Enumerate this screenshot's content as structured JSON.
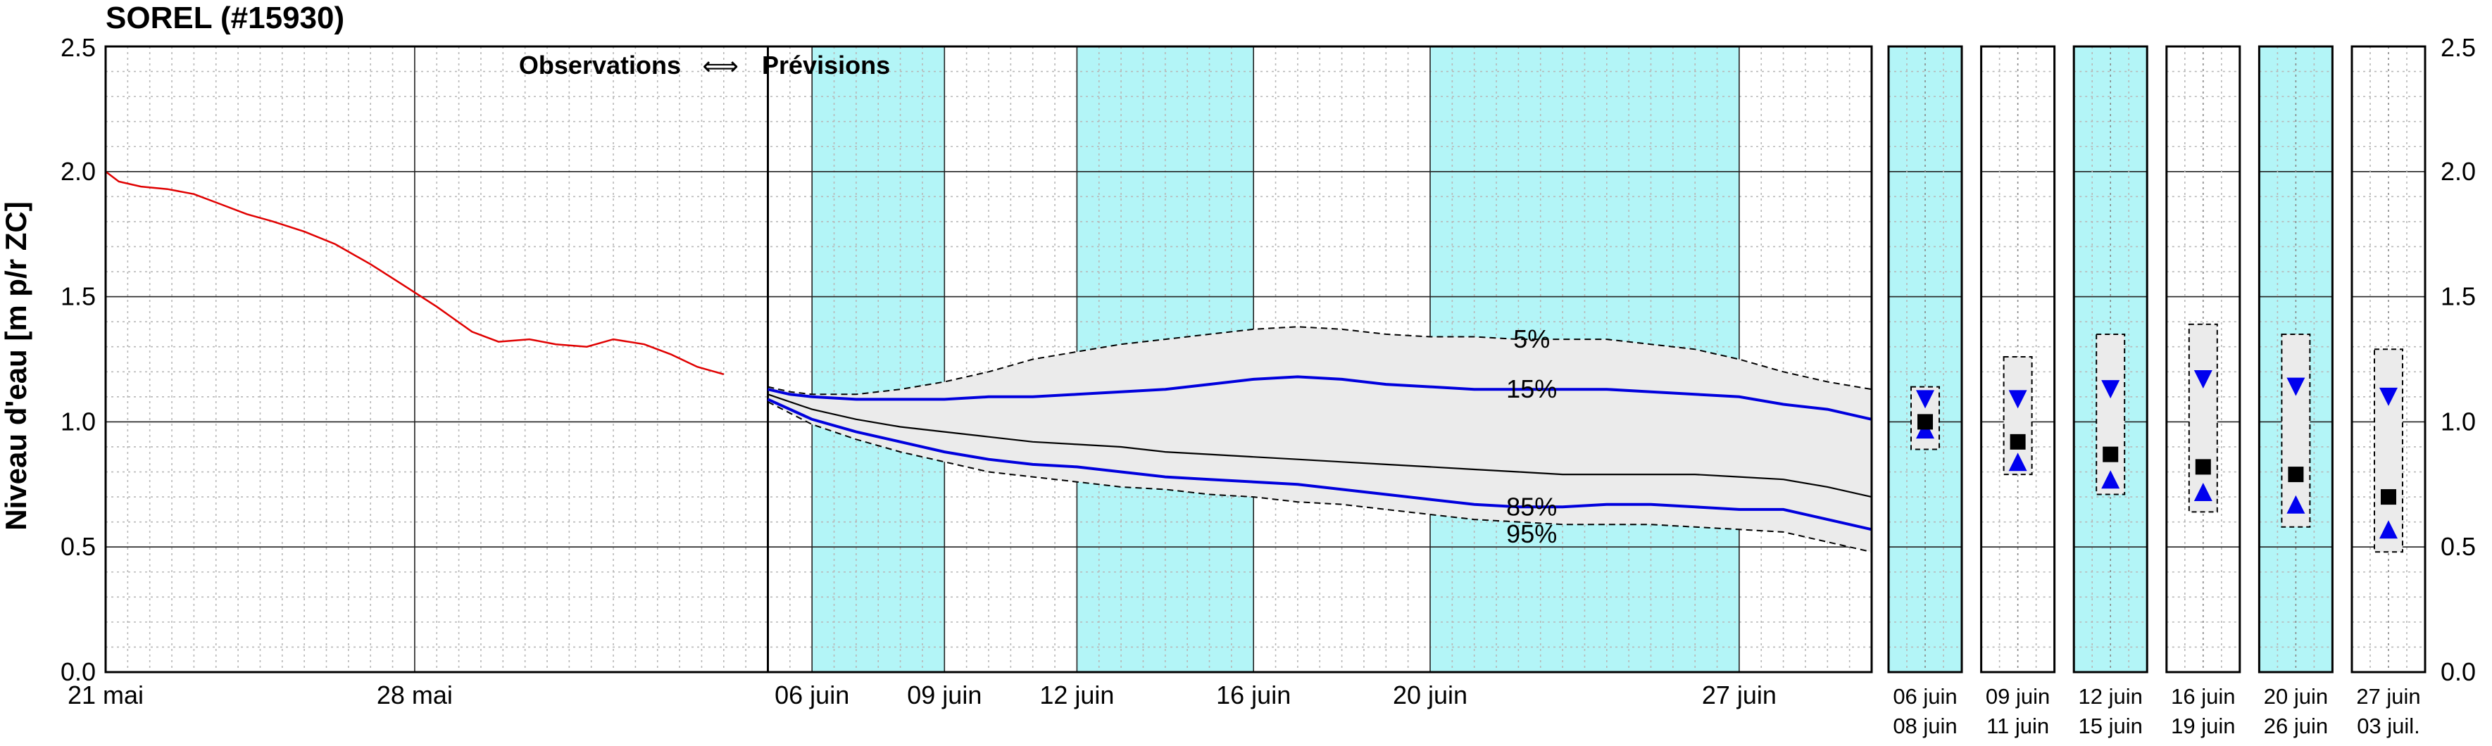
{
  "title": "SOREL (#15930)",
  "ylabel": "Niveau d'eau [m p/r ZC]",
  "y_ticks": [
    "0.0",
    "0.5",
    "1.0",
    "1.5",
    "2.0",
    "2.5"
  ],
  "y_tick_values": [
    0.0,
    0.5,
    1.0,
    1.5,
    2.0,
    2.5
  ],
  "annotation_left": "Observations",
  "annotation_arrow": "⟺",
  "annotation_right": "Prévisions",
  "colors": {
    "observation": "#e00000",
    "percentile_line": "#0000dd",
    "median": "#000000",
    "band_fill": "#ebebeb",
    "highlight": "#b3f5f7",
    "marker_square": "#000000",
    "marker_triangle": "#0000ee"
  },
  "chart_data": [
    {
      "type": "line",
      "title": "SOREL (#15930)",
      "ylabel": "Niveau d'eau [m p/r ZC]",
      "ylim": [
        0,
        2.5
      ],
      "xlim_days": [
        0,
        40
      ],
      "x_ticks": [
        {
          "day": 0,
          "label": "21 mai"
        },
        {
          "day": 7,
          "label": "28 mai"
        },
        {
          "day": 16,
          "label": "06 juin"
        },
        {
          "day": 19,
          "label": "09 juin"
        },
        {
          "day": 22,
          "label": "12 juin"
        },
        {
          "day": 26,
          "label": "16 juin"
        },
        {
          "day": 30,
          "label": "20 juin"
        },
        {
          "day": 37,
          "label": "27 juin"
        }
      ],
      "forecast_start_day": 15,
      "highlight_ranges_days": [
        [
          16,
          19
        ],
        [
          22,
          26
        ],
        [
          30,
          37
        ]
      ],
      "grid": true,
      "series": [
        {
          "key": "observations",
          "x": [
            0,
            0.3,
            0.8,
            1.4,
            2.0,
            2.6,
            3.2,
            3.8,
            4.5,
            5.2,
            6.0,
            6.8,
            7.5,
            8.3,
            8.9,
            9.6,
            10.2,
            10.9,
            11.5,
            12.2,
            12.8,
            13.4,
            14.0
          ],
          "y": [
            2.0,
            1.96,
            1.94,
            1.93,
            1.91,
            1.87,
            1.83,
            1.8,
            1.76,
            1.71,
            1.63,
            1.54,
            1.46,
            1.36,
            1.32,
            1.33,
            1.31,
            1.3,
            1.33,
            1.31,
            1.27,
            1.22,
            1.19
          ]
        },
        {
          "key": "p5",
          "label": "5%",
          "x": [
            15,
            15.5,
            16,
            17,
            18,
            19,
            20,
            21,
            22,
            23,
            24,
            25,
            26,
            27,
            28,
            29,
            30,
            31,
            32,
            33,
            34,
            35,
            36,
            37,
            38,
            39,
            40
          ],
          "y": [
            1.14,
            1.12,
            1.11,
            1.11,
            1.13,
            1.16,
            1.2,
            1.25,
            1.28,
            1.31,
            1.33,
            1.35,
            1.37,
            1.38,
            1.37,
            1.35,
            1.34,
            1.34,
            1.33,
            1.33,
            1.33,
            1.31,
            1.29,
            1.25,
            1.2,
            1.16,
            1.13
          ]
        },
        {
          "key": "p15",
          "label": "15%",
          "x": [
            15,
            15.5,
            16,
            17,
            18,
            19,
            20,
            21,
            22,
            23,
            24,
            25,
            26,
            27,
            28,
            29,
            30,
            31,
            32,
            33,
            34,
            35,
            36,
            37,
            38,
            39,
            40
          ],
          "y": [
            1.13,
            1.11,
            1.1,
            1.09,
            1.09,
            1.09,
            1.1,
            1.1,
            1.11,
            1.12,
            1.13,
            1.15,
            1.17,
            1.18,
            1.17,
            1.15,
            1.14,
            1.13,
            1.13,
            1.13,
            1.13,
            1.12,
            1.11,
            1.1,
            1.07,
            1.05,
            1.01
          ]
        },
        {
          "key": "median",
          "x": [
            15,
            16,
            17,
            18,
            19,
            20,
            21,
            22,
            23,
            24,
            25,
            26,
            27,
            28,
            29,
            30,
            31,
            32,
            33,
            34,
            35,
            36,
            37,
            38,
            39,
            40
          ],
          "y": [
            1.11,
            1.05,
            1.01,
            0.98,
            0.96,
            0.94,
            0.92,
            0.91,
            0.9,
            0.88,
            0.87,
            0.86,
            0.85,
            0.84,
            0.83,
            0.82,
            0.81,
            0.8,
            0.79,
            0.79,
            0.79,
            0.79,
            0.78,
            0.77,
            0.74,
            0.7
          ]
        },
        {
          "key": "p85",
          "label": "85%",
          "x": [
            15,
            16,
            17,
            18,
            19,
            20,
            21,
            22,
            23,
            24,
            25,
            26,
            27,
            28,
            29,
            30,
            31,
            32,
            33,
            34,
            35,
            36,
            37,
            38,
            39,
            40
          ],
          "y": [
            1.09,
            1.01,
            0.96,
            0.92,
            0.88,
            0.85,
            0.83,
            0.82,
            0.8,
            0.78,
            0.77,
            0.76,
            0.75,
            0.73,
            0.71,
            0.69,
            0.67,
            0.66,
            0.66,
            0.67,
            0.67,
            0.66,
            0.65,
            0.65,
            0.61,
            0.57
          ]
        },
        {
          "key": "p95",
          "label": "95%",
          "x": [
            15,
            16,
            17,
            18,
            19,
            20,
            21,
            22,
            23,
            24,
            25,
            26,
            27,
            28,
            29,
            30,
            31,
            32,
            33,
            34,
            35,
            36,
            37,
            38,
            39,
            40
          ],
          "y": [
            1.08,
            0.99,
            0.93,
            0.88,
            0.84,
            0.8,
            0.78,
            0.76,
            0.74,
            0.73,
            0.71,
            0.7,
            0.68,
            0.67,
            0.65,
            0.63,
            0.61,
            0.6,
            0.59,
            0.59,
            0.59,
            0.58,
            0.57,
            0.56,
            0.52,
            0.48
          ]
        }
      ],
      "labels": [
        {
          "series": "p5",
          "text": "5%",
          "x": 32.3,
          "y": 1.33
        },
        {
          "series": "p15",
          "text": "15%",
          "x": 32.3,
          "y": 1.13
        },
        {
          "series": "p85",
          "text": "85%",
          "x": 32.3,
          "y": 0.66
        },
        {
          "series": "p95",
          "text": "95%",
          "x": 32.3,
          "y": 0.59
        }
      ]
    },
    {
      "type": "box",
      "ylim": [
        0,
        2.5
      ],
      "periods": [
        {
          "label_top": "06 juin",
          "label_bottom": "08 juin",
          "highlight": true,
          "box_low": 0.89,
          "box_high": 1.14,
          "median": 1.0,
          "p15": 1.09,
          "p85": 0.97
        },
        {
          "label_top": "09 juin",
          "label_bottom": "11 juin",
          "highlight": false,
          "box_low": 0.79,
          "box_high": 1.26,
          "median": 0.92,
          "p15": 1.09,
          "p85": 0.84
        },
        {
          "label_top": "12 juin",
          "label_bottom": "15 juin",
          "highlight": true,
          "box_low": 0.71,
          "box_high": 1.35,
          "median": 0.87,
          "p15": 1.13,
          "p85": 0.77
        },
        {
          "label_top": "16 juin",
          "label_bottom": "19 juin",
          "highlight": false,
          "box_low": 0.64,
          "box_high": 1.39,
          "median": 0.82,
          "p15": 1.17,
          "p85": 0.72
        },
        {
          "label_top": "20 juin",
          "label_bottom": "26 juin",
          "highlight": true,
          "box_low": 0.58,
          "box_high": 1.35,
          "median": 0.79,
          "p15": 1.14,
          "p85": 0.67
        },
        {
          "label_top": "27 juin",
          "label_bottom": "03 juil.",
          "highlight": false,
          "box_low": 0.48,
          "box_high": 1.29,
          "median": 0.7,
          "p15": 1.1,
          "p85": 0.57
        }
      ]
    }
  ]
}
